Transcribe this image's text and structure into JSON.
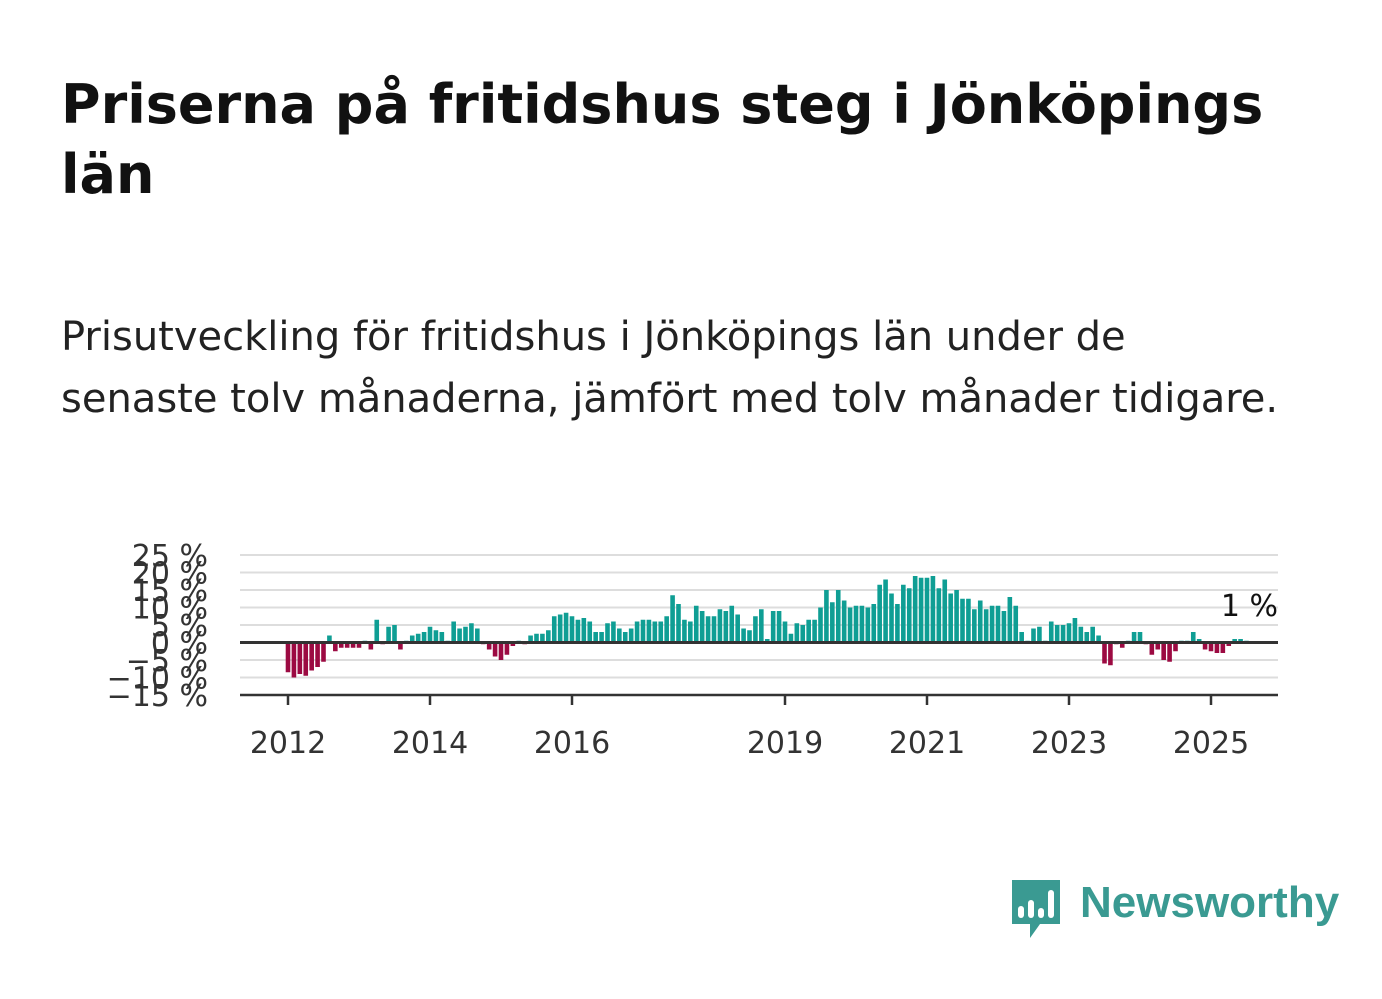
{
  "title": "Priserna på fritidshus steg i Jönköpings län",
  "subtitle": "Prisutveckling för fritidshus i Jönköpings län under de senaste tolv månaderna, jämfört med tolv månader tidigare.",
  "brand": {
    "name": "Newsworthy",
    "icon": "newsworthy-chart-bubble-icon",
    "color": "#3a9a92"
  },
  "colors": {
    "positive": "#0f9e94",
    "negative": "#9c0a42",
    "grid": "#dddddd",
    "zero_line": "#333333"
  },
  "chart_data": {
    "type": "bar",
    "ylim": [
      -15,
      25
    ],
    "yticks": [
      -15,
      -10,
      -5,
      0,
      5,
      10,
      15,
      20,
      25
    ],
    "ytick_labels": [
      "−15 %",
      "−10 %",
      "−5 %",
      "0 %",
      "5 %",
      "10 %",
      "15 %",
      "20 %",
      "25 %"
    ],
    "x_start": "2012-01",
    "xtick_labels": [
      "2012",
      "2014",
      "2016",
      "2019",
      "2021",
      "2023",
      "2025"
    ],
    "xtick_months": [
      "2012-01",
      "2014-01",
      "2016-01",
      "2019-01",
      "2021-01",
      "2023-01",
      "2025-01"
    ],
    "last_value_label": "1 %",
    "grid": true,
    "values": [
      -8.5,
      -10,
      -9,
      -9.5,
      -8,
      -7,
      -5.5,
      2,
      -2.5,
      -1.5,
      -1.5,
      -1.5,
      -1.5,
      0.5,
      -2,
      6.5,
      -0.5,
      4.5,
      5,
      -2,
      0.5,
      2,
      2.5,
      3,
      4.5,
      3.5,
      3,
      0.5,
      6,
      4,
      4.5,
      5.5,
      4,
      -0.5,
      -2,
      -4,
      -5,
      -3.5,
      -1,
      0.5,
      -0.5,
      2,
      2.5,
      2.5,
      3.5,
      7.5,
      8,
      8.5,
      7.5,
      6.5,
      7,
      6,
      3,
      3,
      5.5,
      6,
      4,
      3,
      4,
      6,
      6.5,
      6.5,
      6,
      6,
      7.5,
      13.5,
      11,
      6.5,
      6,
      10.5,
      9,
      7.5,
      7.5,
      9.5,
      9,
      10.5,
      8,
      4,
      3.5,
      7.5,
      9.5,
      1,
      9,
      9,
      6,
      2.5,
      5.5,
      5,
      6.5,
      6.5,
      10,
      15,
      11.5,
      15,
      12,
      10,
      10.5,
      10.5,
      10,
      11,
      16.5,
      18,
      14,
      11,
      16.5,
      15.5,
      19,
      18.5,
      18.5,
      19,
      15.5,
      18,
      14,
      15,
      12.5,
      12.5,
      9.5,
      12,
      9.5,
      10.5,
      10.5,
      9,
      13,
      10.5,
      3,
      0.5,
      4,
      4.5,
      0.5,
      6,
      5,
      5,
      5.5,
      7,
      4.5,
      3,
      4.5,
      2,
      -6,
      -6.5,
      -0.5,
      -1.5,
      0.5,
      3,
      3,
      -0.5,
      -3.5,
      -2,
      -5,
      -5.5,
      -2.5,
      0.5,
      0.5,
      3,
      1,
      -2,
      -2.5,
      -3,
      -3,
      -1,
      1,
      1,
      0.5
    ]
  }
}
